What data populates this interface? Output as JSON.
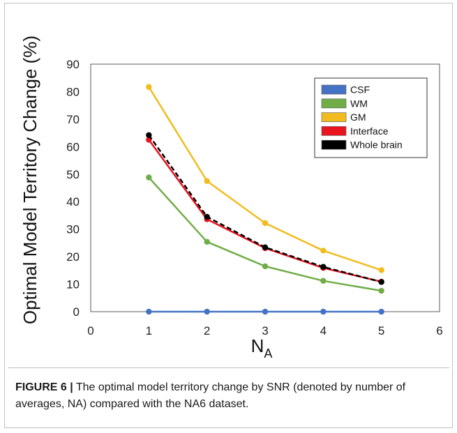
{
  "chart_data": {
    "type": "line",
    "title": "",
    "xlabel": "N",
    "xlabel_sub": "A",
    "ylabel": "Optimal Model Territory Change (%)",
    "xlim": [
      0,
      6
    ],
    "ylim": [
      0,
      90
    ],
    "xticks": [
      "0",
      "1",
      "2",
      "3",
      "4",
      "5",
      "6"
    ],
    "yticks": [
      "0",
      "10",
      "20",
      "30",
      "40",
      "50",
      "60",
      "70",
      "80",
      "90"
    ],
    "x": [
      1,
      2,
      3,
      4,
      5
    ],
    "grid": false,
    "legend_position": "top-right",
    "series": [
      {
        "name": "CSF",
        "color": "#4472c4",
        "dash": false,
        "values": [
          0,
          0,
          0,
          0,
          0
        ]
      },
      {
        "name": "WM",
        "color": "#70ad47",
        "dash": false,
        "values": [
          48.8,
          25.4,
          16.5,
          11.2,
          7.6
        ]
      },
      {
        "name": "GM",
        "color": "#f2bc1f",
        "dash": false,
        "values": [
          81.7,
          47.5,
          32.2,
          22.2,
          15.1
        ]
      },
      {
        "name": "Interface",
        "color": "#e8141e",
        "dash": false,
        "values": [
          62.5,
          33.6,
          23.1,
          15.9,
          10.9
        ]
      },
      {
        "name": "Whole brain",
        "color": "#000000",
        "dash": true,
        "values": [
          64.2,
          34.5,
          23.4,
          16.3,
          10.8
        ]
      }
    ]
  },
  "caption": {
    "label": "FIGURE 6 |",
    "text": "The optimal model territory change by SNR (denoted by number of averages, NA) compared with the NA6 dataset."
  }
}
